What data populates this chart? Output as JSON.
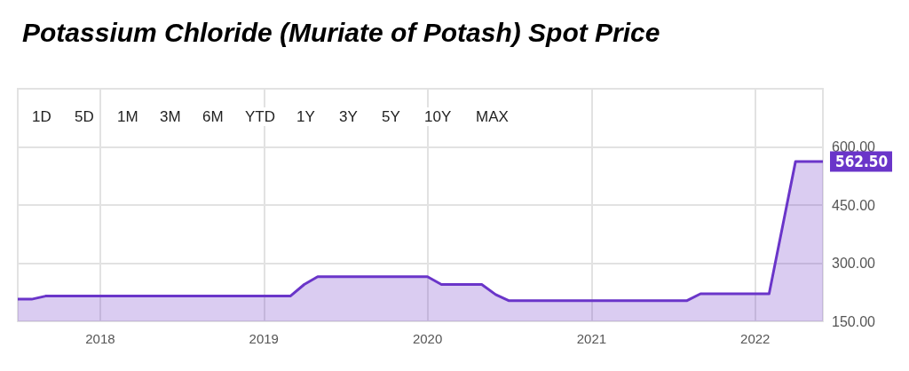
{
  "chart_data": {
    "type": "area",
    "title": "Potassium Chloride (Muriate of Potash) Spot Price",
    "annotations": [
      "1D",
      "5D",
      "1M",
      "3M",
      "6M",
      "YTD",
      "1Y",
      "3Y",
      "5Y",
      "10Y",
      "MAX"
    ],
    "x": [
      "2017-07-01",
      "2017-08-01",
      "2017-09-01",
      "2019-03-01",
      "2019-04-01",
      "2019-05-01",
      "2020-01-01",
      "2020-02-01",
      "2020-05-01",
      "2020-06-01",
      "2020-07-01",
      "2021-08-01",
      "2021-09-01",
      "2022-02-01",
      "2022-04-01",
      "2022-06-01"
    ],
    "series": [
      {
        "color": "#6a35c9",
        "values": [
          207,
          207,
          215,
          215,
          245,
          265,
          265,
          245,
          245,
          219,
          203,
          203,
          221,
          221,
          562.5,
          562.5
        ],
        "value_labels": [
          null,
          null,
          null,
          null,
          null,
          null,
          null,
          null,
          null,
          null,
          null,
          null,
          null,
          null,
          null,
          "562.50"
        ]
      }
    ],
    "xlim": [
      "2017-07-01",
      "2022-06-01"
    ],
    "xticks": [
      "2018",
      "2019",
      "2020",
      "2021",
      "2022"
    ],
    "ylim": [
      150,
      750
    ],
    "yticks": [
      {
        "value": 150,
        "label": "150.00"
      },
      {
        "value": 300,
        "label": "300.00"
      },
      {
        "value": 450,
        "label": "450.00"
      },
      {
        "value": 600,
        "label": "600.00"
      }
    ],
    "grid": true,
    "marker": "none",
    "line_style": "solid"
  }
}
